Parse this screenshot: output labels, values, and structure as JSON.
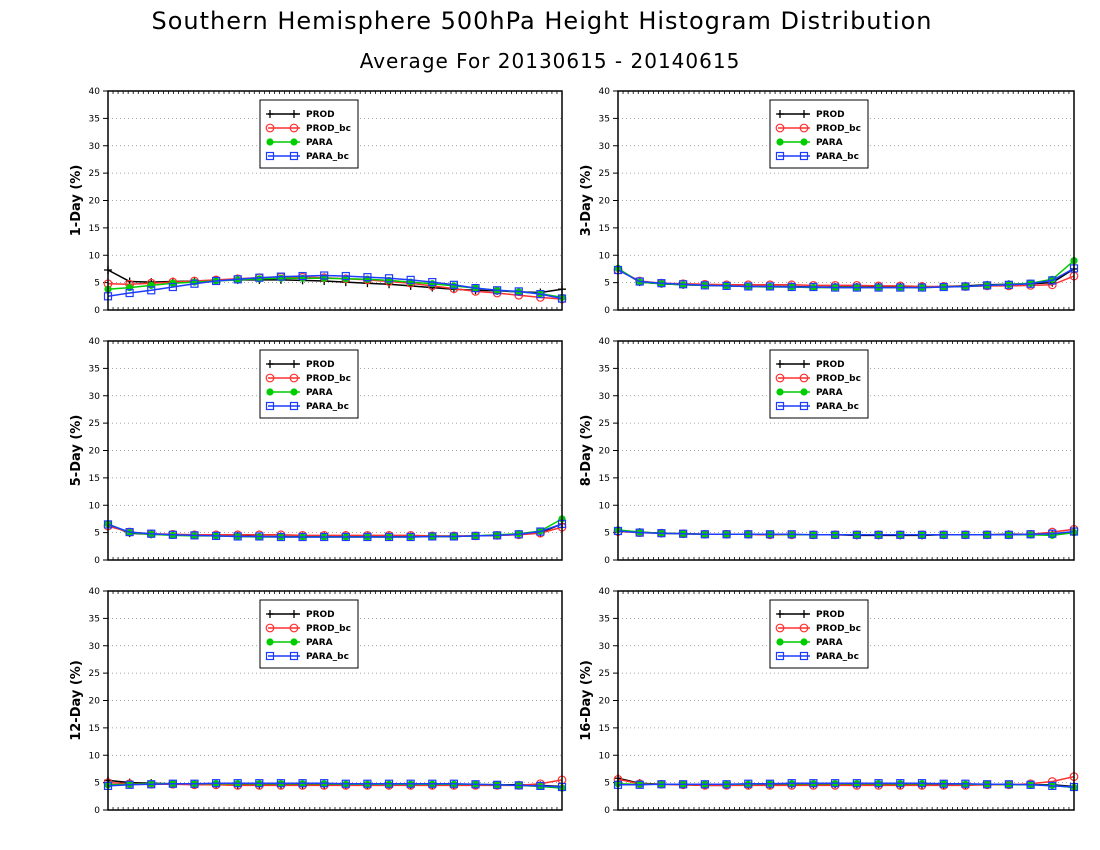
{
  "figure": {
    "title": "Southern Hemisphere 500hPa Height Histogram Distribution",
    "subtitle": "Average For 20130615 - 20140615"
  },
  "colors": {
    "PROD": "#000000",
    "PROD_bc": "#ff3030",
    "PARA": "#00cc00",
    "PARA_bc": "#1e3cff"
  },
  "chart_data": [
    {
      "type": "line",
      "ylabel": "1-Day (%)",
      "ylim": [
        0,
        40
      ],
      "yticks": [
        0,
        5,
        10,
        15,
        20,
        25,
        30,
        35,
        40
      ],
      "grid": true,
      "legend_position": "top-left",
      "x": [
        1,
        2,
        3,
        4,
        5,
        6,
        7,
        8,
        9,
        10,
        11,
        12,
        13,
        14,
        15,
        16,
        17,
        18,
        19,
        20,
        21,
        22
      ],
      "series": [
        {
          "name": "PROD",
          "marker": "plus",
          "values": [
            7.3,
            5.2,
            5.1,
            5.2,
            5.3,
            5.4,
            5.5,
            5.5,
            5.5,
            5.4,
            5.3,
            5.1,
            4.9,
            4.7,
            4.4,
            4.1,
            3.8,
            3.6,
            3.5,
            3.3,
            3.2,
            3.8
          ]
        },
        {
          "name": "PROD_bc",
          "marker": "circle",
          "values": [
            4.8,
            4.7,
            4.9,
            5.1,
            5.3,
            5.5,
            5.7,
            5.9,
            6.0,
            6.0,
            5.9,
            5.7,
            5.5,
            5.2,
            4.9,
            4.4,
            3.9,
            3.4,
            3.1,
            2.7,
            2.3,
            2.0
          ]
        },
        {
          "name": "PARA",
          "marker": "dot",
          "values": [
            3.8,
            4.1,
            4.5,
            4.9,
            5.1,
            5.3,
            5.5,
            5.7,
            5.8,
            5.8,
            5.8,
            5.7,
            5.6,
            5.4,
            5.1,
            4.8,
            4.4,
            4.0,
            3.6,
            3.3,
            3.0,
            2.3
          ]
        },
        {
          "name": "PARA_bc",
          "marker": "square",
          "values": [
            2.5,
            3.1,
            3.6,
            4.2,
            4.8,
            5.3,
            5.6,
            5.9,
            6.1,
            6.2,
            6.3,
            6.2,
            6.0,
            5.8,
            5.5,
            5.1,
            4.6,
            4.0,
            3.6,
            3.4,
            2.9,
            2.1
          ]
        }
      ]
    },
    {
      "type": "line",
      "ylabel": "3-Day (%)",
      "ylim": [
        0,
        40
      ],
      "yticks": [
        0,
        5,
        10,
        15,
        20,
        25,
        30,
        35,
        40
      ],
      "grid": true,
      "legend_position": "top-center",
      "x": [
        1,
        2,
        3,
        4,
        5,
        6,
        7,
        8,
        9,
        10,
        11,
        12,
        13,
        14,
        15,
        16,
        17,
        18,
        19,
        20,
        21,
        22
      ],
      "series": [
        {
          "name": "PROD",
          "marker": "plus",
          "values": [
            7.5,
            5.1,
            4.8,
            4.6,
            4.5,
            4.4,
            4.3,
            4.3,
            4.3,
            4.2,
            4.2,
            4.2,
            4.2,
            4.2,
            4.2,
            4.3,
            4.4,
            4.6,
            4.7,
            4.8,
            5.0,
            7.5
          ]
        },
        {
          "name": "PROD_bc",
          "marker": "circle",
          "values": [
            7.3,
            5.3,
            4.9,
            4.8,
            4.7,
            4.6,
            4.6,
            4.6,
            4.6,
            4.5,
            4.5,
            4.5,
            4.4,
            4.4,
            4.3,
            4.3,
            4.3,
            4.4,
            4.4,
            4.5,
            4.6,
            6.2
          ]
        },
        {
          "name": "PARA",
          "marker": "dot",
          "values": [
            7.6,
            5.1,
            4.8,
            4.6,
            4.5,
            4.4,
            4.3,
            4.2,
            4.2,
            4.1,
            4.1,
            4.1,
            4.1,
            4.1,
            4.1,
            4.2,
            4.3,
            4.5,
            4.7,
            4.9,
            5.6,
            9.0
          ]
        },
        {
          "name": "PARA_bc",
          "marker": "square",
          "values": [
            7.3,
            5.2,
            4.9,
            4.7,
            4.5,
            4.4,
            4.3,
            4.3,
            4.2,
            4.2,
            4.1,
            4.1,
            4.1,
            4.1,
            4.1,
            4.2,
            4.3,
            4.5,
            4.6,
            4.8,
            5.4,
            7.6
          ]
        }
      ]
    },
    {
      "type": "line",
      "ylabel": "5-Day (%)",
      "ylim": [
        0,
        40
      ],
      "yticks": [
        0,
        5,
        10,
        15,
        20,
        25,
        30,
        35,
        40
      ],
      "grid": true,
      "legend_position": "top-center",
      "x": [
        1,
        2,
        3,
        4,
        5,
        6,
        7,
        8,
        9,
        10,
        11,
        12,
        13,
        14,
        15,
        16,
        17,
        18,
        19,
        20,
        21,
        22
      ],
      "series": [
        {
          "name": "PROD",
          "marker": "plus",
          "values": [
            6.5,
            4.9,
            4.7,
            4.6,
            4.5,
            4.4,
            4.4,
            4.3,
            4.3,
            4.3,
            4.3,
            4.3,
            4.3,
            4.3,
            4.3,
            4.3,
            4.3,
            4.4,
            4.5,
            4.7,
            5.0,
            6.6
          ]
        },
        {
          "name": "PROD_bc",
          "marker": "circle",
          "values": [
            6.2,
            5.1,
            4.8,
            4.7,
            4.6,
            4.6,
            4.6,
            4.6,
            4.6,
            4.5,
            4.5,
            4.5,
            4.5,
            4.5,
            4.5,
            4.4,
            4.4,
            4.4,
            4.5,
            4.6,
            4.9,
            6.0
          ]
        },
        {
          "name": "PARA",
          "marker": "dot",
          "values": [
            6.6,
            5.0,
            4.7,
            4.5,
            4.4,
            4.4,
            4.3,
            4.2,
            4.2,
            4.2,
            4.2,
            4.2,
            4.2,
            4.2,
            4.2,
            4.3,
            4.3,
            4.4,
            4.6,
            4.8,
            5.3,
            7.5
          ]
        },
        {
          "name": "PARA_bc",
          "marker": "square",
          "values": [
            6.5,
            5.1,
            4.8,
            4.6,
            4.5,
            4.4,
            4.3,
            4.3,
            4.2,
            4.2,
            4.2,
            4.2,
            4.2,
            4.2,
            4.2,
            4.3,
            4.3,
            4.4,
            4.5,
            4.7,
            5.2,
            6.6
          ]
        }
      ]
    },
    {
      "type": "line",
      "ylabel": "8-Day (%)",
      "ylim": [
        0,
        40
      ],
      "yticks": [
        0,
        5,
        10,
        15,
        20,
        25,
        30,
        35,
        40
      ],
      "grid": true,
      "legend_position": "top-center",
      "x": [
        1,
        2,
        3,
        4,
        5,
        6,
        7,
        8,
        9,
        10,
        11,
        12,
        13,
        14,
        15,
        16,
        17,
        18,
        19,
        20,
        21,
        22
      ],
      "series": [
        {
          "name": "PROD",
          "marker": "plus",
          "values": [
            5.4,
            5.1,
            4.9,
            4.8,
            4.7,
            4.7,
            4.7,
            4.6,
            4.6,
            4.6,
            4.6,
            4.5,
            4.5,
            4.5,
            4.5,
            4.6,
            4.6,
            4.6,
            4.7,
            4.7,
            4.8,
            5.1
          ]
        },
        {
          "name": "PROD_bc",
          "marker": "circle",
          "values": [
            5.2,
            5.0,
            4.9,
            4.8,
            4.7,
            4.7,
            4.7,
            4.6,
            4.6,
            4.6,
            4.6,
            4.6,
            4.6,
            4.6,
            4.6,
            4.6,
            4.6,
            4.6,
            4.6,
            4.7,
            5.1,
            5.6
          ]
        },
        {
          "name": "PARA",
          "marker": "dot",
          "values": [
            5.5,
            5.1,
            4.9,
            4.8,
            4.7,
            4.7,
            4.7,
            4.7,
            4.6,
            4.6,
            4.6,
            4.6,
            4.6,
            4.6,
            4.6,
            4.6,
            4.6,
            4.6,
            4.6,
            4.6,
            4.5,
            5.0
          ]
        },
        {
          "name": "PARA_bc",
          "marker": "square",
          "values": [
            5.3,
            5.0,
            4.9,
            4.8,
            4.7,
            4.7,
            4.7,
            4.7,
            4.7,
            4.6,
            4.6,
            4.6,
            4.6,
            4.6,
            4.6,
            4.6,
            4.6,
            4.6,
            4.6,
            4.7,
            4.8,
            5.2
          ]
        }
      ]
    },
    {
      "type": "line",
      "ylabel": "12-Day (%)",
      "ylim": [
        0,
        40
      ],
      "yticks": [
        0,
        5,
        10,
        15,
        20,
        25,
        30,
        35,
        40
      ],
      "grid": true,
      "legend_position": "top-center",
      "x": [
        1,
        2,
        3,
        4,
        5,
        6,
        7,
        8,
        9,
        10,
        11,
        12,
        13,
        14,
        15,
        16,
        17,
        18,
        19,
        20,
        21,
        22
      ],
      "series": [
        {
          "name": "PROD",
          "marker": "plus",
          "values": [
            5.4,
            5.0,
            4.9,
            4.8,
            4.7,
            4.7,
            4.6,
            4.6,
            4.6,
            4.6,
            4.6,
            4.6,
            4.6,
            4.6,
            4.6,
            4.6,
            4.6,
            4.6,
            4.6,
            4.6,
            4.5,
            4.3
          ]
        },
        {
          "name": "PROD_bc",
          "marker": "circle",
          "values": [
            5.0,
            4.8,
            4.7,
            4.7,
            4.6,
            4.6,
            4.5,
            4.5,
            4.5,
            4.5,
            4.5,
            4.5,
            4.5,
            4.5,
            4.5,
            4.5,
            4.5,
            4.5,
            4.5,
            4.5,
            4.8,
            5.5
          ]
        },
        {
          "name": "PARA",
          "marker": "dot",
          "values": [
            4.6,
            4.7,
            4.8,
            4.8,
            4.8,
            4.8,
            4.8,
            4.8,
            4.8,
            4.8,
            4.8,
            4.7,
            4.7,
            4.7,
            4.7,
            4.7,
            4.7,
            4.7,
            4.6,
            4.5,
            4.3,
            4.0
          ]
        },
        {
          "name": "PARA_bc",
          "marker": "square",
          "values": [
            4.4,
            4.6,
            4.7,
            4.8,
            4.8,
            4.9,
            4.9,
            4.9,
            4.9,
            4.9,
            4.9,
            4.8,
            4.8,
            4.8,
            4.8,
            4.8,
            4.8,
            4.7,
            4.6,
            4.5,
            4.4,
            4.2
          ]
        }
      ]
    },
    {
      "type": "line",
      "ylabel": "16-Day (%)",
      "ylim": [
        0,
        40
      ],
      "yticks": [
        0,
        5,
        10,
        15,
        20,
        25,
        30,
        35,
        40
      ],
      "grid": true,
      "legend_position": "top-center",
      "x": [
        1,
        2,
        3,
        4,
        5,
        6,
        7,
        8,
        9,
        10,
        11,
        12,
        13,
        14,
        15,
        16,
        17,
        18,
        19,
        20,
        21,
        22
      ],
      "series": [
        {
          "name": "PROD",
          "marker": "plus",
          "values": [
            5.8,
            4.9,
            4.7,
            4.6,
            4.5,
            4.5,
            4.6,
            4.6,
            4.7,
            4.7,
            4.7,
            4.7,
            4.7,
            4.6,
            4.6,
            4.6,
            4.6,
            4.6,
            4.6,
            4.6,
            4.6,
            4.3
          ]
        },
        {
          "name": "PROD_bc",
          "marker": "circle",
          "values": [
            5.6,
            4.8,
            4.7,
            4.6,
            4.5,
            4.5,
            4.5,
            4.5,
            4.5,
            4.5,
            4.5,
            4.5,
            4.5,
            4.5,
            4.5,
            4.5,
            4.5,
            4.6,
            4.6,
            4.8,
            5.2,
            6.1
          ]
        },
        {
          "name": "PARA",
          "marker": "dot",
          "values": [
            4.8,
            4.7,
            4.7,
            4.7,
            4.7,
            4.7,
            4.7,
            4.8,
            4.8,
            4.8,
            4.8,
            4.8,
            4.8,
            4.8,
            4.8,
            4.8,
            4.7,
            4.7,
            4.6,
            4.6,
            4.5,
            4.1
          ]
        },
        {
          "name": "PARA_bc",
          "marker": "square",
          "values": [
            4.6,
            4.6,
            4.7,
            4.7,
            4.7,
            4.7,
            4.8,
            4.8,
            4.9,
            4.9,
            4.9,
            4.9,
            4.9,
            4.9,
            4.9,
            4.8,
            4.8,
            4.7,
            4.7,
            4.6,
            4.4,
            4.2
          ]
        }
      ]
    }
  ]
}
